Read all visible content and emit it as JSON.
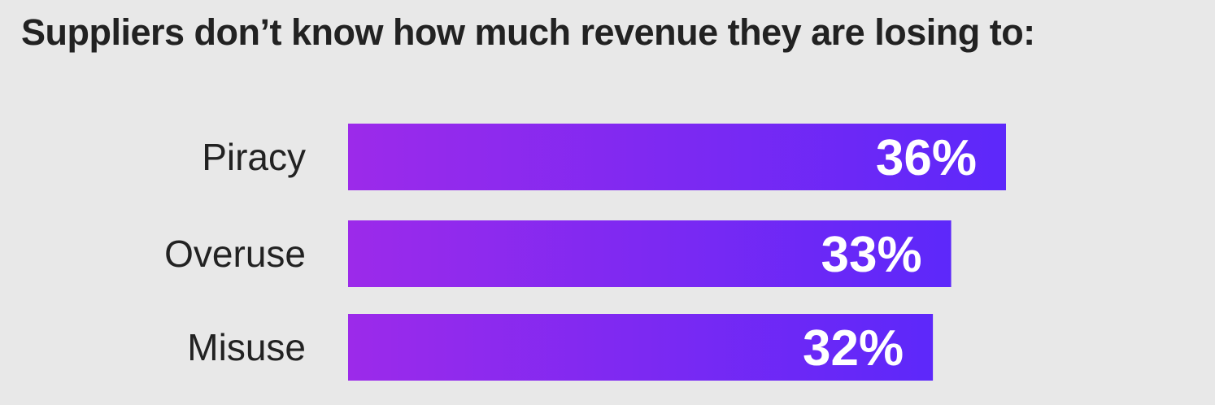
{
  "chart_data": {
    "type": "bar",
    "orientation": "horizontal",
    "title": "Suppliers don’t know how much revenue they are losing to:",
    "categories": [
      "Piracy",
      "Overuse",
      "Misuse"
    ],
    "values": [
      36,
      33,
      32
    ],
    "data_labels": [
      "36%",
      "33%",
      "32%"
    ],
    "xlim": [
      0,
      36
    ],
    "grid": false,
    "colors": {
      "gradient_start": "#9c2aea",
      "gradient_end": "#5d28fa",
      "background": "#e8e8e8",
      "label_text": "#222222",
      "value_text": "#ffffff"
    }
  }
}
